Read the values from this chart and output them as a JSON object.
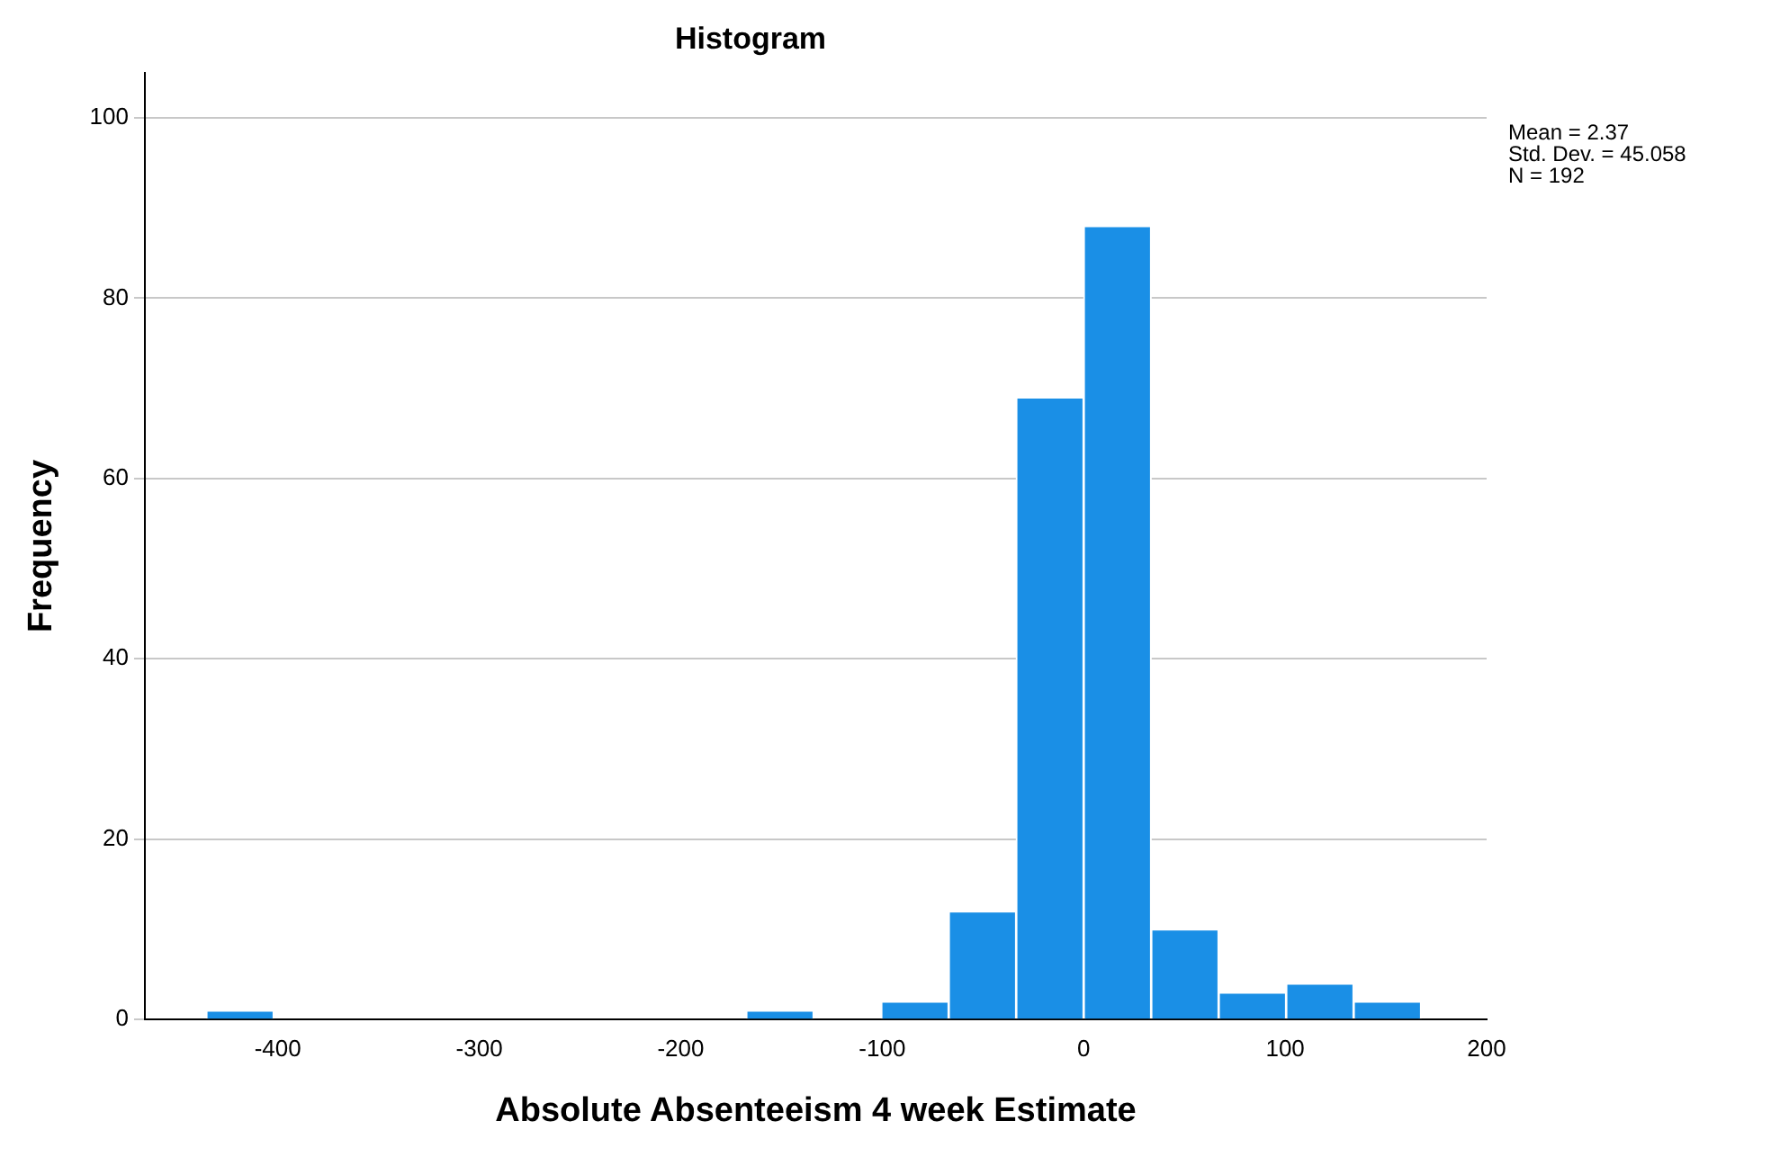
{
  "chart_data": {
    "type": "histogram",
    "title": "Histogram",
    "xlabel": "Absolute Absenteeism 4 week Estimate",
    "ylabel": "Frequency",
    "bins": [
      -435.5,
      -402,
      -368.5,
      -335,
      -301.5,
      -268,
      -234.5,
      -201,
      -167.5,
      -134,
      -100.5,
      -67,
      -33.5,
      0,
      33.5,
      67,
      100.5,
      134,
      167.5
    ],
    "values": [
      1,
      0,
      0,
      0,
      0,
      0,
      0,
      0,
      1,
      0,
      2,
      12,
      69,
      88,
      10,
      3,
      4,
      2
    ],
    "color": "#1a8fe6",
    "xlim": [
      -466,
      200
    ],
    "xticks": [
      -400,
      -300,
      -200,
      -100,
      0,
      100,
      200
    ],
    "ylim": [
      0,
      105
    ],
    "yticks": [
      0,
      20,
      40,
      60,
      80,
      100
    ],
    "grid": "y",
    "annotations": [
      "Mean = 2.37",
      "Std. Dev. = 45.058",
      "N = 192"
    ]
  }
}
